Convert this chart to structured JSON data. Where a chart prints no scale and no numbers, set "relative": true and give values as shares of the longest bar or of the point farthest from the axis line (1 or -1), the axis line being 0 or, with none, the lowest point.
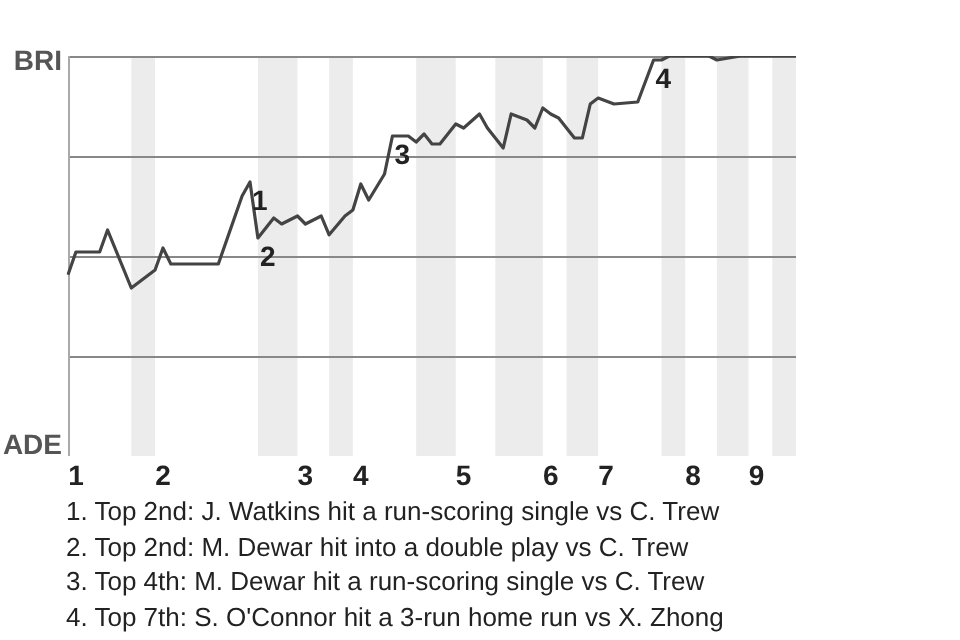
{
  "chart_data": {
    "type": "line",
    "categories": [
      null,
      "1",
      null,
      null,
      null,
      null,
      null,
      null,
      null,
      null,
      null,
      null,
      "2",
      null,
      null,
      null,
      null,
      null,
      null,
      null,
      null,
      null,
      null,
      null,
      null,
      null,
      null,
      null,
      null,
      null,
      "3",
      null,
      null,
      null,
      null,
      null,
      null,
      "4",
      null,
      null,
      null,
      null,
      null,
      null,
      null,
      null,
      null,
      null,
      null,
      null,
      "5",
      null,
      null,
      null,
      null,
      null,
      null,
      null,
      null,
      null,
      null,
      "6",
      null,
      null,
      null,
      null,
      null,
      null,
      "7",
      null,
      null,
      null,
      null,
      null,
      null,
      null,
      null,
      null,
      null,
      "8",
      null,
      null,
      null,
      null,
      null,
      null,
      null,
      "9",
      null,
      null,
      null,
      null,
      null
    ],
    "series": [
      {
        "values": [
          0.453,
          0.51,
          null,
          null,
          0.51,
          0.565,
          null,
          null,
          0.42,
          null,
          null,
          0.465,
          0.52,
          0.48,
          null,
          null,
          null,
          null,
          null,
          0.48,
          null,
          null,
          0.65,
          0.685,
          0.545,
          null,
          0.595,
          0.58,
          null,
          0.6,
          0.58,
          null,
          0.6,
          0.553,
          null,
          0.6,
          0.615,
          0.68,
          0.64,
          null,
          0.705,
          0.8,
          null,
          0.8,
          0.785,
          0.805,
          0.78,
          0.78,
          null,
          0.83,
          0.82,
          null,
          0.855,
          0.82,
          null,
          0.77,
          0.855,
          null,
          0.84,
          0.82,
          0.87,
          0.855,
          0.845,
          null,
          0.795,
          0.795,
          0.88,
          0.895,
          null,
          0.88,
          null,
          null,
          0.885,
          null,
          0.99,
          0.99,
          1,
          null,
          null,
          null,
          null,
          1,
          0.99,
          null,
          null,
          1,
          null,
          null,
          null,
          null,
          null,
          null,
          1
        ],
        "color": "#444444"
      }
    ],
    "relative": true,
    "grid": "y",
    "marker": "none",
    "legend": false,
    "annotations": [
      "BRI",
      "ADE",
      {
        "text": "1",
        "y": 0.685
      },
      {
        "text": "2",
        "y": 0.545
      },
      {
        "text": "3",
        "y": 0.8
      },
      {
        "text": "4",
        "y": 0.99
      },
      "1. Top 2nd: J. Watkins hit a run-scoring single vs C. Trew",
      "2. Top 2nd: M. Dewar hit into a double play vs C. Trew",
      "3. Top 4th: M. Dewar hit a run-scoring single vs C. Trew",
      "4. Top 7th: S. O'Connor hit a 3-run home run vs X. Zhong"
    ]
  }
}
